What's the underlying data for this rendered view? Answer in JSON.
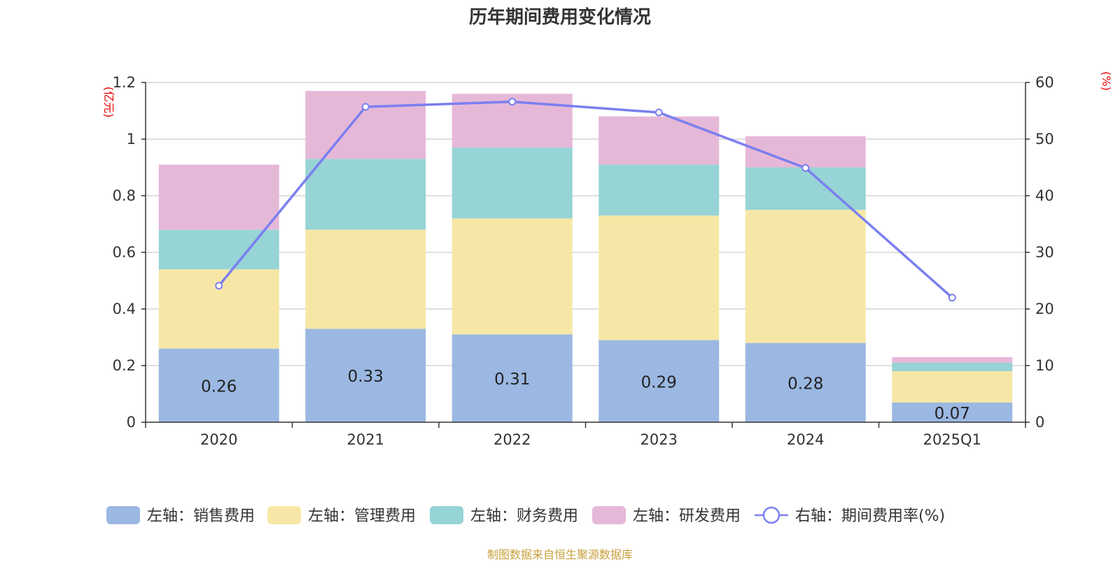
{
  "title": "历年期间费用变化情况",
  "source": "制图数据来自恒生聚源数据库",
  "colors": {
    "sales": "#9bb8e2",
    "admin": "#f7e7a7",
    "finance": "#97d4d6",
    "rd": "#e6b8d8",
    "rate": "#7b7ff0",
    "grid": "#cccccc",
    "axis": "#333333",
    "unit": "#e60000"
  },
  "chart_data": {
    "type": "bar",
    "stacked": true,
    "categories": [
      "2020",
      "2021",
      "2022",
      "2023",
      "2024",
      "2025Q1"
    ],
    "left_axis": {
      "unit": "(亿元)",
      "ylim": [
        0,
        1.2
      ],
      "ticks": [
        "0",
        "0.2",
        "0.4",
        "0.6",
        "0.8",
        "1",
        "1.2"
      ]
    },
    "right_axis": {
      "unit": "(%)",
      "ylim": [
        0,
        60
      ],
      "ticks": [
        "0",
        "10",
        "20",
        "30",
        "40",
        "50",
        "60"
      ]
    },
    "series": [
      {
        "name": "左轴：销售费用",
        "key": "sales",
        "values": [
          0.26,
          0.33,
          0.31,
          0.29,
          0.28,
          0.07
        ],
        "labels": [
          "0.26",
          "0.33",
          "0.31",
          "0.29",
          "0.28",
          "0.07"
        ]
      },
      {
        "name": "左轴：管理费用",
        "key": "admin",
        "values": [
          0.28,
          0.35,
          0.41,
          0.44,
          0.47,
          0.11
        ]
      },
      {
        "name": "左轴：财务费用",
        "key": "finance",
        "values": [
          0.14,
          0.25,
          0.25,
          0.18,
          0.15,
          0.03
        ]
      },
      {
        "name": "左轴：研发费用",
        "key": "rd",
        "values": [
          0.23,
          0.24,
          0.19,
          0.17,
          0.11,
          0.02
        ]
      }
    ],
    "line": {
      "name": "右轴：期间费用率(%)",
      "key": "rate",
      "axis": "right",
      "values": [
        24.1,
        55.7,
        56.6,
        54.7,
        44.9,
        22.0
      ]
    },
    "grid": true,
    "legend_position": "bottom"
  }
}
